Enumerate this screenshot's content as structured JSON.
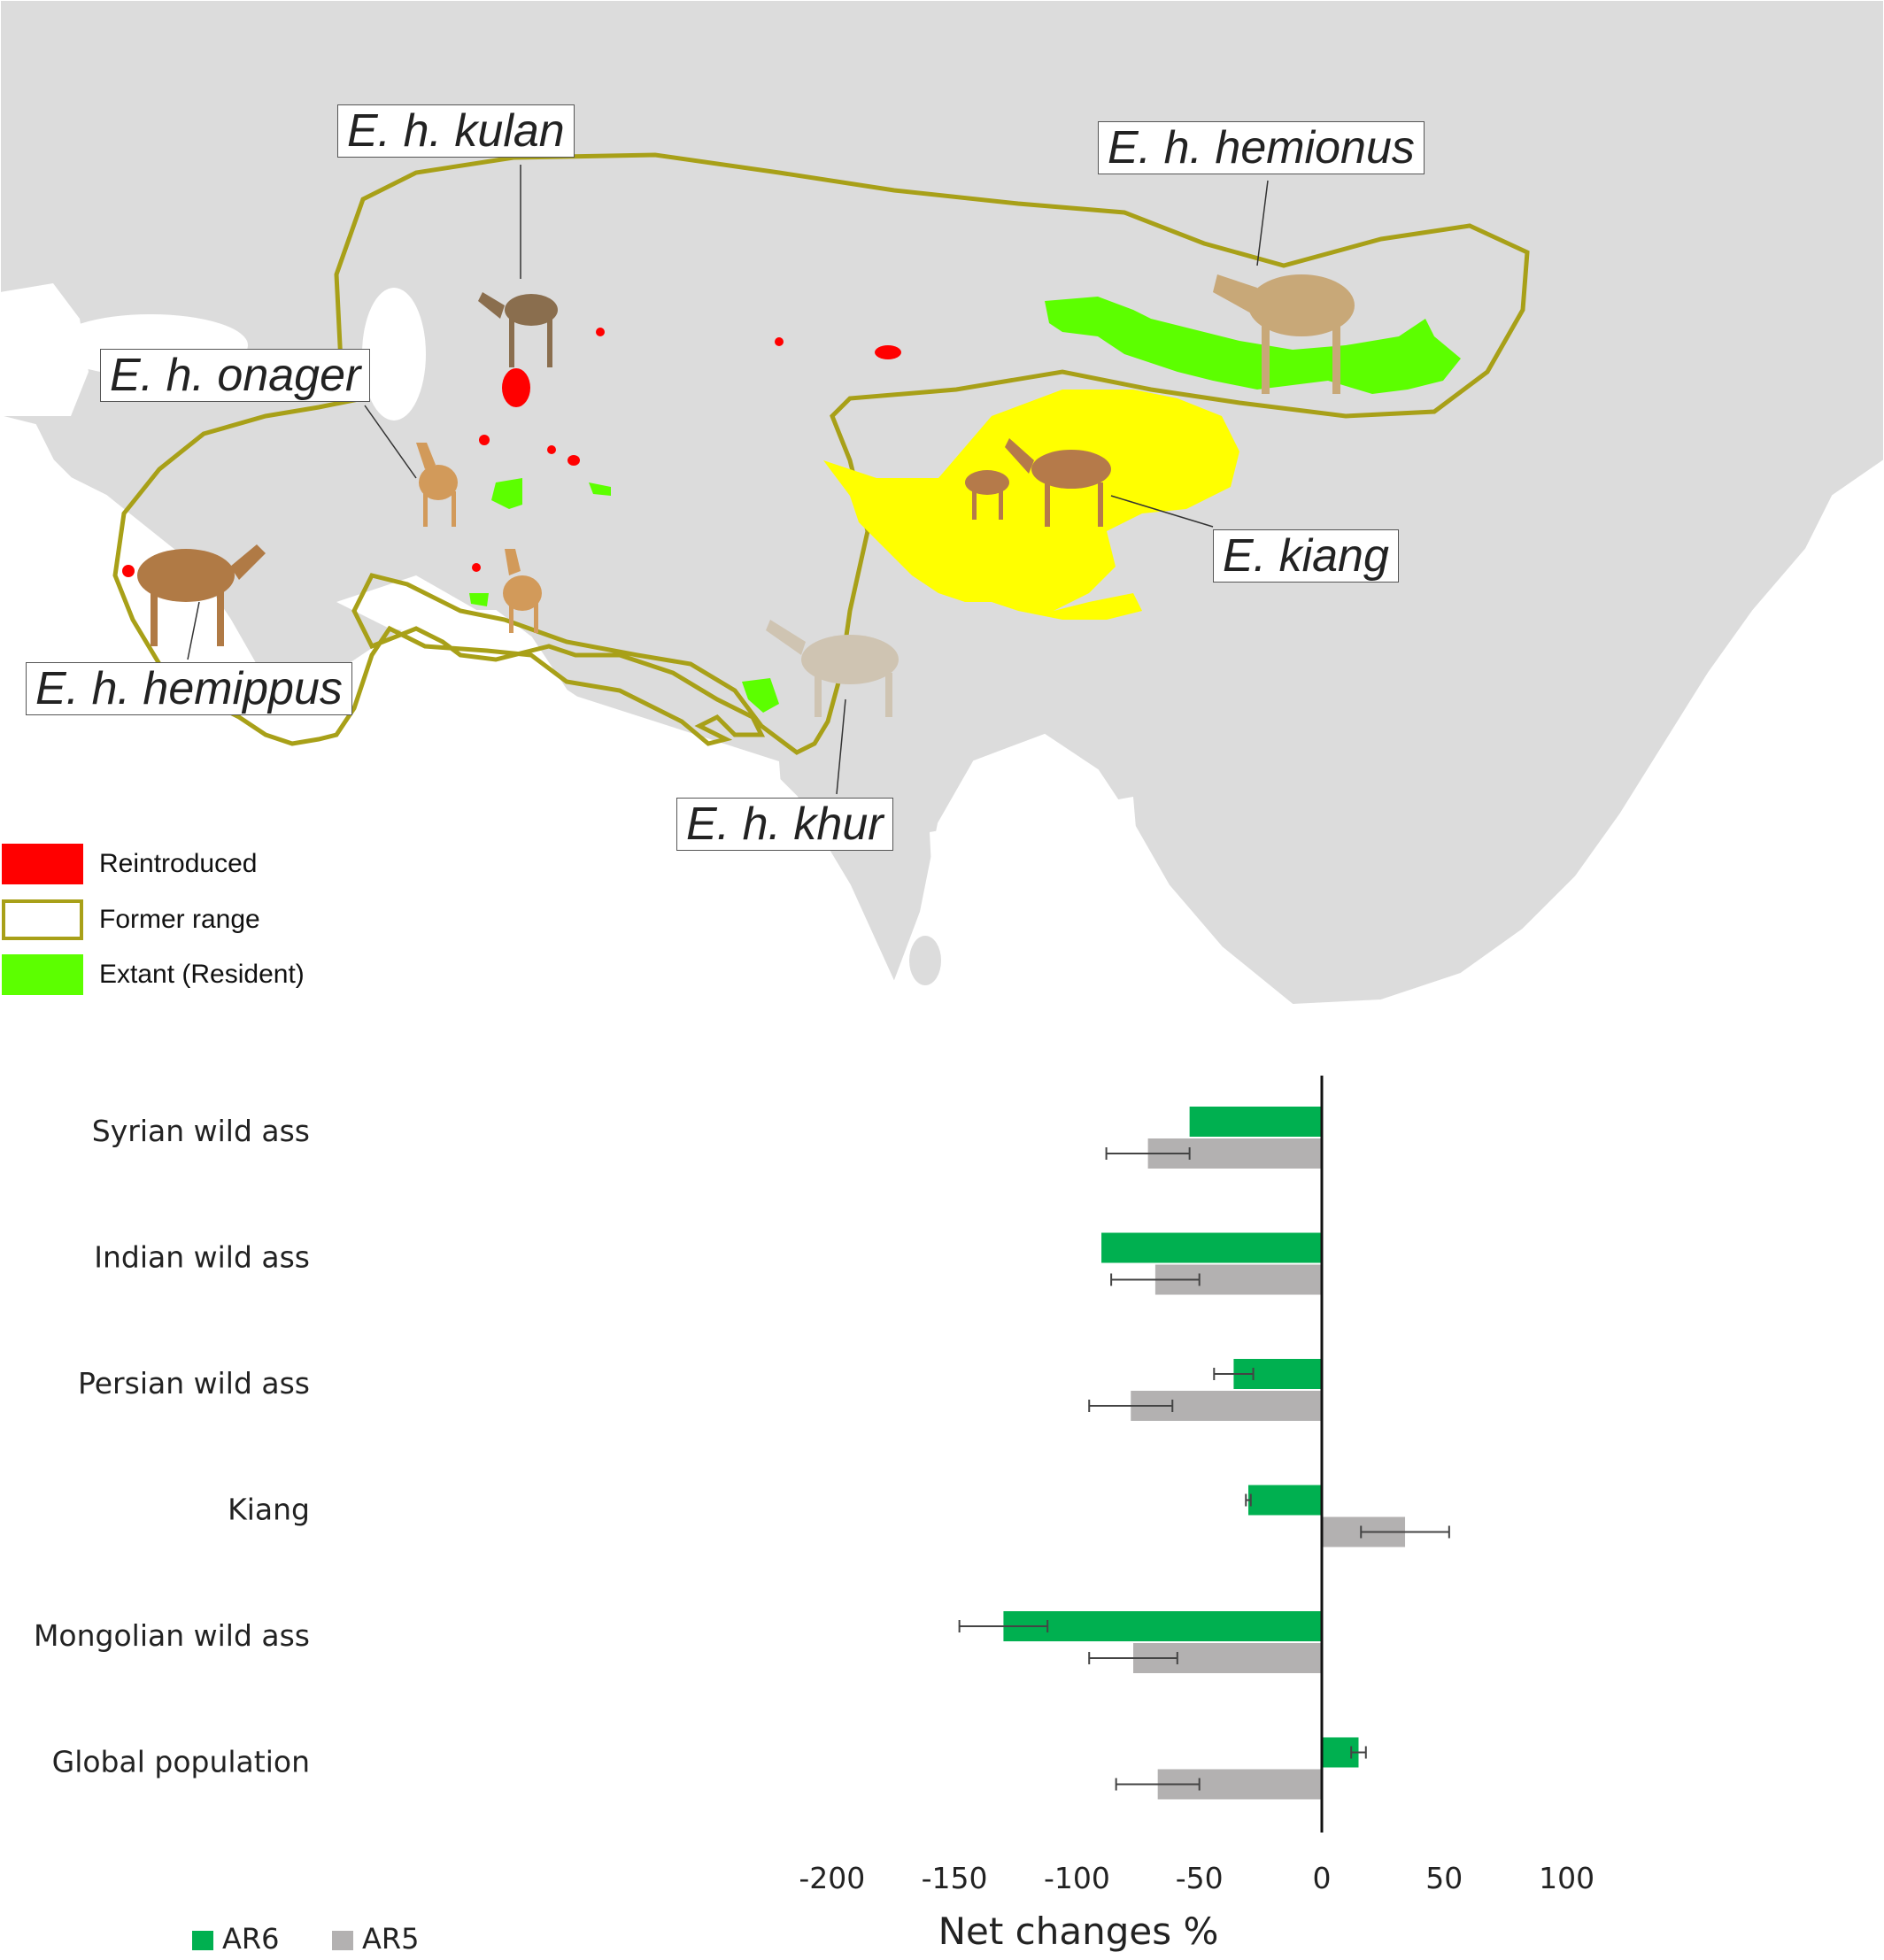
{
  "map": {
    "subspecies_labels": {
      "kulan": "E. h. kulan",
      "hemionus": "E. h. hemionus",
      "onager": "E. h. onager",
      "kiang": "E. kiang",
      "hemippus": "E. h. hemippus",
      "khur": "E. h. khur"
    },
    "legend": [
      {
        "label": "Reintroduced",
        "color": "#ff0000",
        "style": "fill"
      },
      {
        "label": "Former range",
        "color": "#a8a018",
        "style": "outline"
      },
      {
        "label": "Extant (Resident)",
        "color": "#5cff00",
        "style": "fill"
      }
    ],
    "colors": {
      "land": "#dcdcdc",
      "border": "#ffffff",
      "water": "#ffffff",
      "former_range": "#a8a018",
      "kiang_range": "#ffff00",
      "extant": "#5cff00",
      "reintroduced": "#ff0000"
    }
  },
  "chart_data": {
    "type": "bar",
    "orientation": "horizontal",
    "categories": [
      "Syrian wild ass",
      "Indian wild ass",
      "Persian wild ass",
      "Kiang",
      "Mongolian wild ass",
      "Global population"
    ],
    "series": [
      {
        "name": "AR6",
        "color": "#00b050",
        "values": [
          -54,
          -90,
          -36,
          -30,
          -130,
          15
        ],
        "error": [
          null,
          null,
          8,
          1,
          18,
          3
        ]
      },
      {
        "name": "AR5",
        "color": "#b3b1b1",
        "values": [
          -71,
          -68,
          -78,
          34,
          -77,
          -67
        ],
        "error": [
          17,
          18,
          17,
          18,
          18,
          17
        ]
      }
    ],
    "xlabel": "Net changes %",
    "ylabel": "",
    "xlim": [
      -200,
      100
    ],
    "xticks": [
      "-200",
      "-150",
      "-100",
      "-50",
      "0",
      "50",
      "100"
    ],
    "xtick_values": [
      -200,
      -150,
      -100,
      -50,
      0,
      50,
      100
    ],
    "legend_position": "bottom-left",
    "grid": false
  }
}
